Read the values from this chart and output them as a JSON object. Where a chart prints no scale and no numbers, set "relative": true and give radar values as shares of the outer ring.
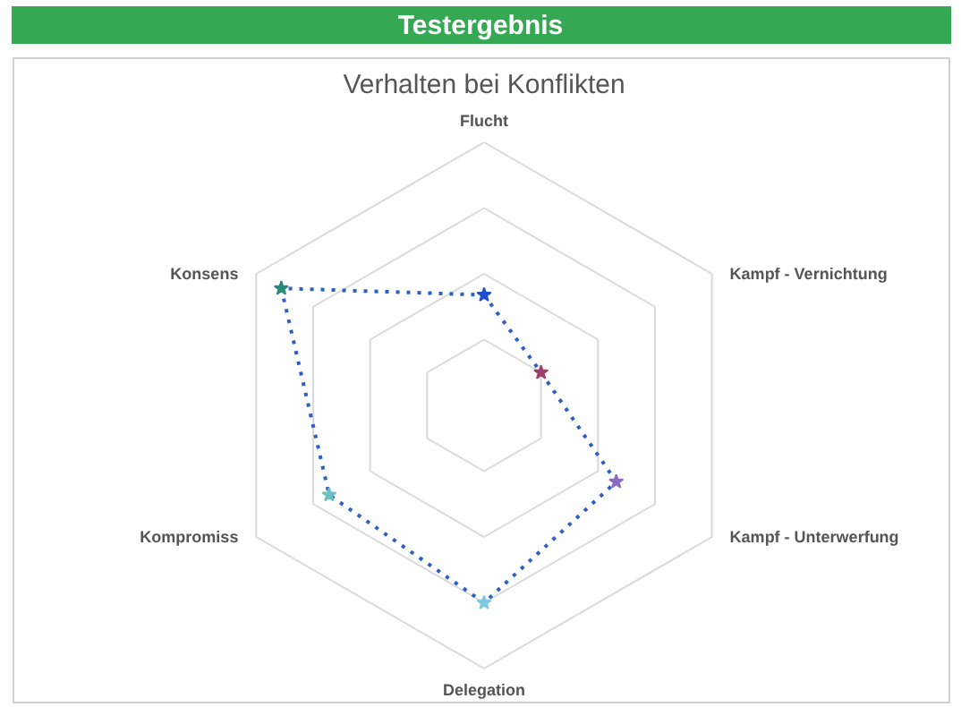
{
  "chart_data": {
    "type": "radar",
    "title": "Testergebnis",
    "subtitle": "Verhalten bei Konflikten",
    "relative": true,
    "grid": true,
    "marker": "star",
    "line_style": "dotted",
    "categories": [
      "Flucht",
      "Kampf - Vernichtung",
      "Kampf - Unterwerfung",
      "Delegation",
      "Kompromiss",
      "Konsens"
    ],
    "series": [
      {
        "color": "#2a5fc8",
        "values": [
          0.42,
          0.25,
          0.58,
          0.75,
          0.68,
          0.89
        ],
        "colors": [
          "#1f4fd0",
          "#a0406a",
          "#8a6ac0",
          "#7ec8e0",
          "#6cc0c0",
          "#2a8a7a"
        ]
      }
    ]
  }
}
